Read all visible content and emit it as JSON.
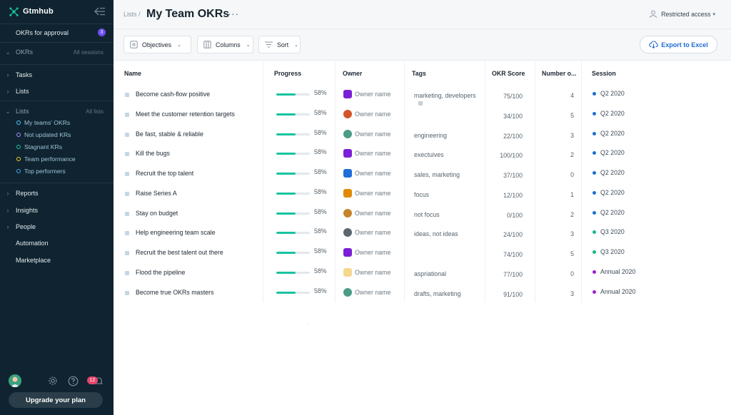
{
  "brand": {
    "name": "Gtmhub",
    "color": "#17c3a0"
  },
  "sidebar": {
    "approval": {
      "label": "OKRs for approval",
      "count": "3"
    },
    "okrs": {
      "label": "OKRs",
      "aside": "All sessions"
    },
    "tasks": {
      "label": "Tasks"
    },
    "lists_top": {
      "label": "Lists"
    },
    "lists_group": {
      "label": "Lists",
      "aside": "All lists"
    },
    "list_items": [
      {
        "label": "My teams' OKRs",
        "color": "#4fc3f7"
      },
      {
        "label": "Not updated KRs",
        "color": "#b388ff"
      },
      {
        "label": "Stagnant KRs",
        "color": "#17c3a0"
      },
      {
        "label": "Team performance",
        "color": "#ffca28"
      },
      {
        "label": "Top performers",
        "color": "#42a5f5"
      }
    ],
    "reports": {
      "label": "Reports"
    },
    "insights": {
      "label": "Insights"
    },
    "people": {
      "label": "People"
    },
    "automation": {
      "label": "Automation"
    },
    "marketplace": {
      "label": "Marketplace"
    },
    "notifications_count": "12",
    "upgrade_label": "Upgrade your plan"
  },
  "header": {
    "breadcrumb": "Lists /",
    "title": "My Team OKRs",
    "more": "···",
    "access_label": "Restricted access"
  },
  "toolbar": {
    "objectives_label": "Objectives",
    "columns_label": "Columns",
    "sort_label": "Sort",
    "export_label": "Export to Excel"
  },
  "table": {
    "columns": [
      "Name",
      "Progress",
      "Owner",
      "Tags",
      "OKR Score",
      "Number o...",
      "Session"
    ],
    "rows": [
      {
        "name": "Become cash-flow positive",
        "progress_text": "58%",
        "progress": 0.58,
        "owner": "Owner name",
        "owner_color": "#7b1fd6",
        "owner_round": false,
        "tags": "marketing, developers",
        "extra_tag": true,
        "score": "75/100",
        "number": "4",
        "session": "Q2 2020",
        "session_color": "#1e6fd9"
      },
      {
        "name": "Meet the customer retention targets",
        "progress_text": "58%",
        "progress": 0.58,
        "owner": "Owner name",
        "owner_color": "#d4552a",
        "owner_round": true,
        "tags": "",
        "extra_tag": false,
        "score": "34/100",
        "number": "5",
        "session": "Q2 2020",
        "session_color": "#1e6fd9"
      },
      {
        "name": "Be fast, stable & reliable",
        "progress_text": "58%",
        "progress": 0.58,
        "owner": "Owner name",
        "owner_color": "#4a9c86",
        "owner_round": true,
        "tags": "engineering",
        "extra_tag": false,
        "score": "22/100",
        "number": "3",
        "session": "Q2 2020",
        "session_color": "#1e6fd9"
      },
      {
        "name": "Kill the bugs",
        "progress_text": "58%",
        "progress": 0.58,
        "owner": "Owner name",
        "owner_color": "#7b1fd6",
        "owner_round": false,
        "tags": "exectuives",
        "extra_tag": false,
        "score": "100/100",
        "number": "2",
        "session": "Q2 2020",
        "session_color": "#1e6fd9"
      },
      {
        "name": "Recruit the top talent",
        "progress_text": "58%",
        "progress": 0.58,
        "owner": "Owner name",
        "owner_color": "#1e6fd9",
        "owner_round": false,
        "tags": "sales, marketing",
        "extra_tag": false,
        "score": "37/100",
        "number": "0",
        "session": "Q2 2020",
        "session_color": "#1e6fd9"
      },
      {
        "name": "Raise Series A",
        "progress_text": "58%",
        "progress": 0.58,
        "owner": "Owner name",
        "owner_color": "#e08a00",
        "owner_round": false,
        "tags": "focus",
        "extra_tag": false,
        "score": "12/100",
        "number": "1",
        "session": "Q2 2020",
        "session_color": "#1e6fd9"
      },
      {
        "name": "Stay on budget",
        "progress_text": "58%",
        "progress": 0.58,
        "owner": "Owner name",
        "owner_color": "#c7842a",
        "owner_round": true,
        "tags": "not focus",
        "extra_tag": false,
        "score": "0/100",
        "number": "2",
        "session": "Q2 2020",
        "session_color": "#1e6fd9"
      },
      {
        "name": "Help engineering team scale",
        "progress_text": "58%",
        "progress": 0.58,
        "owner": "Owner name",
        "owner_color": "#5a6670",
        "owner_round": true,
        "tags": "ideas, not ideas",
        "extra_tag": false,
        "score": "24/100",
        "number": "3",
        "session": "Q3 2020",
        "session_color": "#17b886"
      },
      {
        "name": "Recruit the best talent out there",
        "progress_text": "58%",
        "progress": 0.58,
        "owner": "Owner name",
        "owner_color": "#7b1fd6",
        "owner_round": false,
        "tags": "",
        "extra_tag": false,
        "score": "74/100",
        "number": "5",
        "session": "Q3 2020",
        "session_color": "#17b886"
      },
      {
        "name": "Flood the pipeline",
        "progress_text": "58%",
        "progress": 0.58,
        "owner": "Owner name",
        "owner_color": "#f5d78e",
        "owner_round": false,
        "tags": "aspriational",
        "extra_tag": false,
        "score": "77/100",
        "number": "0",
        "session": "Annual 2020",
        "session_color": "#a01fd6"
      },
      {
        "name": "Become true OKRs masters",
        "progress_text": "58%",
        "progress": 0.58,
        "owner": "Owner name",
        "owner_color": "#4a9c86",
        "owner_round": true,
        "tags": "drafts, marketing",
        "extra_tag": false,
        "score": "91/100",
        "number": "3",
        "session": "Annual 2020",
        "session_color": "#a01fd6"
      }
    ]
  }
}
